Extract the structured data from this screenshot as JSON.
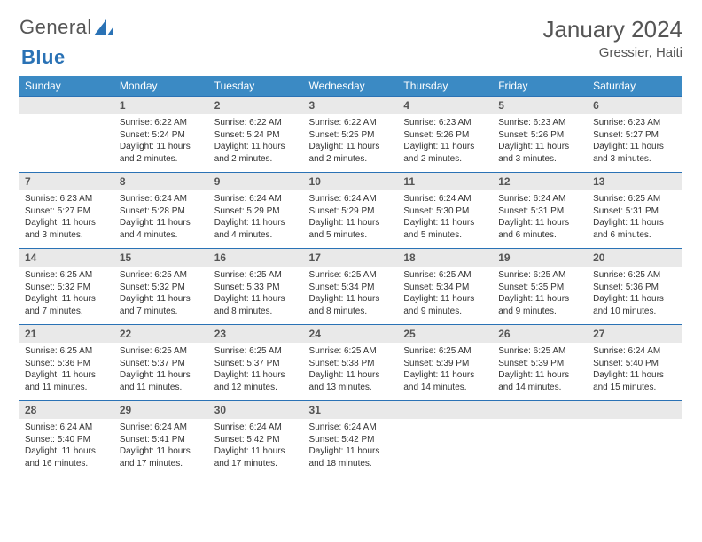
{
  "brand": {
    "name_a": "General",
    "name_b": "Blue"
  },
  "title": "January 2024",
  "location": "Gressier, Haiti",
  "colors": {
    "header_bg": "#3b8ac4",
    "header_text": "#ffffff",
    "daynum_bg": "#e9e9e9",
    "row_border": "#2a72b5",
    "body_text": "#333333",
    "title_text": "#555555"
  },
  "weekdays": [
    "Sunday",
    "Monday",
    "Tuesday",
    "Wednesday",
    "Thursday",
    "Friday",
    "Saturday"
  ],
  "first_weekday_index": 1,
  "days": [
    {
      "n": 1,
      "sunrise": "6:22 AM",
      "sunset": "5:24 PM",
      "daylight": "11 hours and 2 minutes."
    },
    {
      "n": 2,
      "sunrise": "6:22 AM",
      "sunset": "5:24 PM",
      "daylight": "11 hours and 2 minutes."
    },
    {
      "n": 3,
      "sunrise": "6:22 AM",
      "sunset": "5:25 PM",
      "daylight": "11 hours and 2 minutes."
    },
    {
      "n": 4,
      "sunrise": "6:23 AM",
      "sunset": "5:26 PM",
      "daylight": "11 hours and 2 minutes."
    },
    {
      "n": 5,
      "sunrise": "6:23 AM",
      "sunset": "5:26 PM",
      "daylight": "11 hours and 3 minutes."
    },
    {
      "n": 6,
      "sunrise": "6:23 AM",
      "sunset": "5:27 PM",
      "daylight": "11 hours and 3 minutes."
    },
    {
      "n": 7,
      "sunrise": "6:23 AM",
      "sunset": "5:27 PM",
      "daylight": "11 hours and 3 minutes."
    },
    {
      "n": 8,
      "sunrise": "6:24 AM",
      "sunset": "5:28 PM",
      "daylight": "11 hours and 4 minutes."
    },
    {
      "n": 9,
      "sunrise": "6:24 AM",
      "sunset": "5:29 PM",
      "daylight": "11 hours and 4 minutes."
    },
    {
      "n": 10,
      "sunrise": "6:24 AM",
      "sunset": "5:29 PM",
      "daylight": "11 hours and 5 minutes."
    },
    {
      "n": 11,
      "sunrise": "6:24 AM",
      "sunset": "5:30 PM",
      "daylight": "11 hours and 5 minutes."
    },
    {
      "n": 12,
      "sunrise": "6:24 AM",
      "sunset": "5:31 PM",
      "daylight": "11 hours and 6 minutes."
    },
    {
      "n": 13,
      "sunrise": "6:25 AM",
      "sunset": "5:31 PM",
      "daylight": "11 hours and 6 minutes."
    },
    {
      "n": 14,
      "sunrise": "6:25 AM",
      "sunset": "5:32 PM",
      "daylight": "11 hours and 7 minutes."
    },
    {
      "n": 15,
      "sunrise": "6:25 AM",
      "sunset": "5:32 PM",
      "daylight": "11 hours and 7 minutes."
    },
    {
      "n": 16,
      "sunrise": "6:25 AM",
      "sunset": "5:33 PM",
      "daylight": "11 hours and 8 minutes."
    },
    {
      "n": 17,
      "sunrise": "6:25 AM",
      "sunset": "5:34 PM",
      "daylight": "11 hours and 8 minutes."
    },
    {
      "n": 18,
      "sunrise": "6:25 AM",
      "sunset": "5:34 PM",
      "daylight": "11 hours and 9 minutes."
    },
    {
      "n": 19,
      "sunrise": "6:25 AM",
      "sunset": "5:35 PM",
      "daylight": "11 hours and 9 minutes."
    },
    {
      "n": 20,
      "sunrise": "6:25 AM",
      "sunset": "5:36 PM",
      "daylight": "11 hours and 10 minutes."
    },
    {
      "n": 21,
      "sunrise": "6:25 AM",
      "sunset": "5:36 PM",
      "daylight": "11 hours and 11 minutes."
    },
    {
      "n": 22,
      "sunrise": "6:25 AM",
      "sunset": "5:37 PM",
      "daylight": "11 hours and 11 minutes."
    },
    {
      "n": 23,
      "sunrise": "6:25 AM",
      "sunset": "5:37 PM",
      "daylight": "11 hours and 12 minutes."
    },
    {
      "n": 24,
      "sunrise": "6:25 AM",
      "sunset": "5:38 PM",
      "daylight": "11 hours and 13 minutes."
    },
    {
      "n": 25,
      "sunrise": "6:25 AM",
      "sunset": "5:39 PM",
      "daylight": "11 hours and 14 minutes."
    },
    {
      "n": 26,
      "sunrise": "6:25 AM",
      "sunset": "5:39 PM",
      "daylight": "11 hours and 14 minutes."
    },
    {
      "n": 27,
      "sunrise": "6:24 AM",
      "sunset": "5:40 PM",
      "daylight": "11 hours and 15 minutes."
    },
    {
      "n": 28,
      "sunrise": "6:24 AM",
      "sunset": "5:40 PM",
      "daylight": "11 hours and 16 minutes."
    },
    {
      "n": 29,
      "sunrise": "6:24 AM",
      "sunset": "5:41 PM",
      "daylight": "11 hours and 17 minutes."
    },
    {
      "n": 30,
      "sunrise": "6:24 AM",
      "sunset": "5:42 PM",
      "daylight": "11 hours and 17 minutes."
    },
    {
      "n": 31,
      "sunrise": "6:24 AM",
      "sunset": "5:42 PM",
      "daylight": "11 hours and 18 minutes."
    }
  ],
  "labels": {
    "sunrise": "Sunrise:",
    "sunset": "Sunset:",
    "daylight": "Daylight:"
  }
}
